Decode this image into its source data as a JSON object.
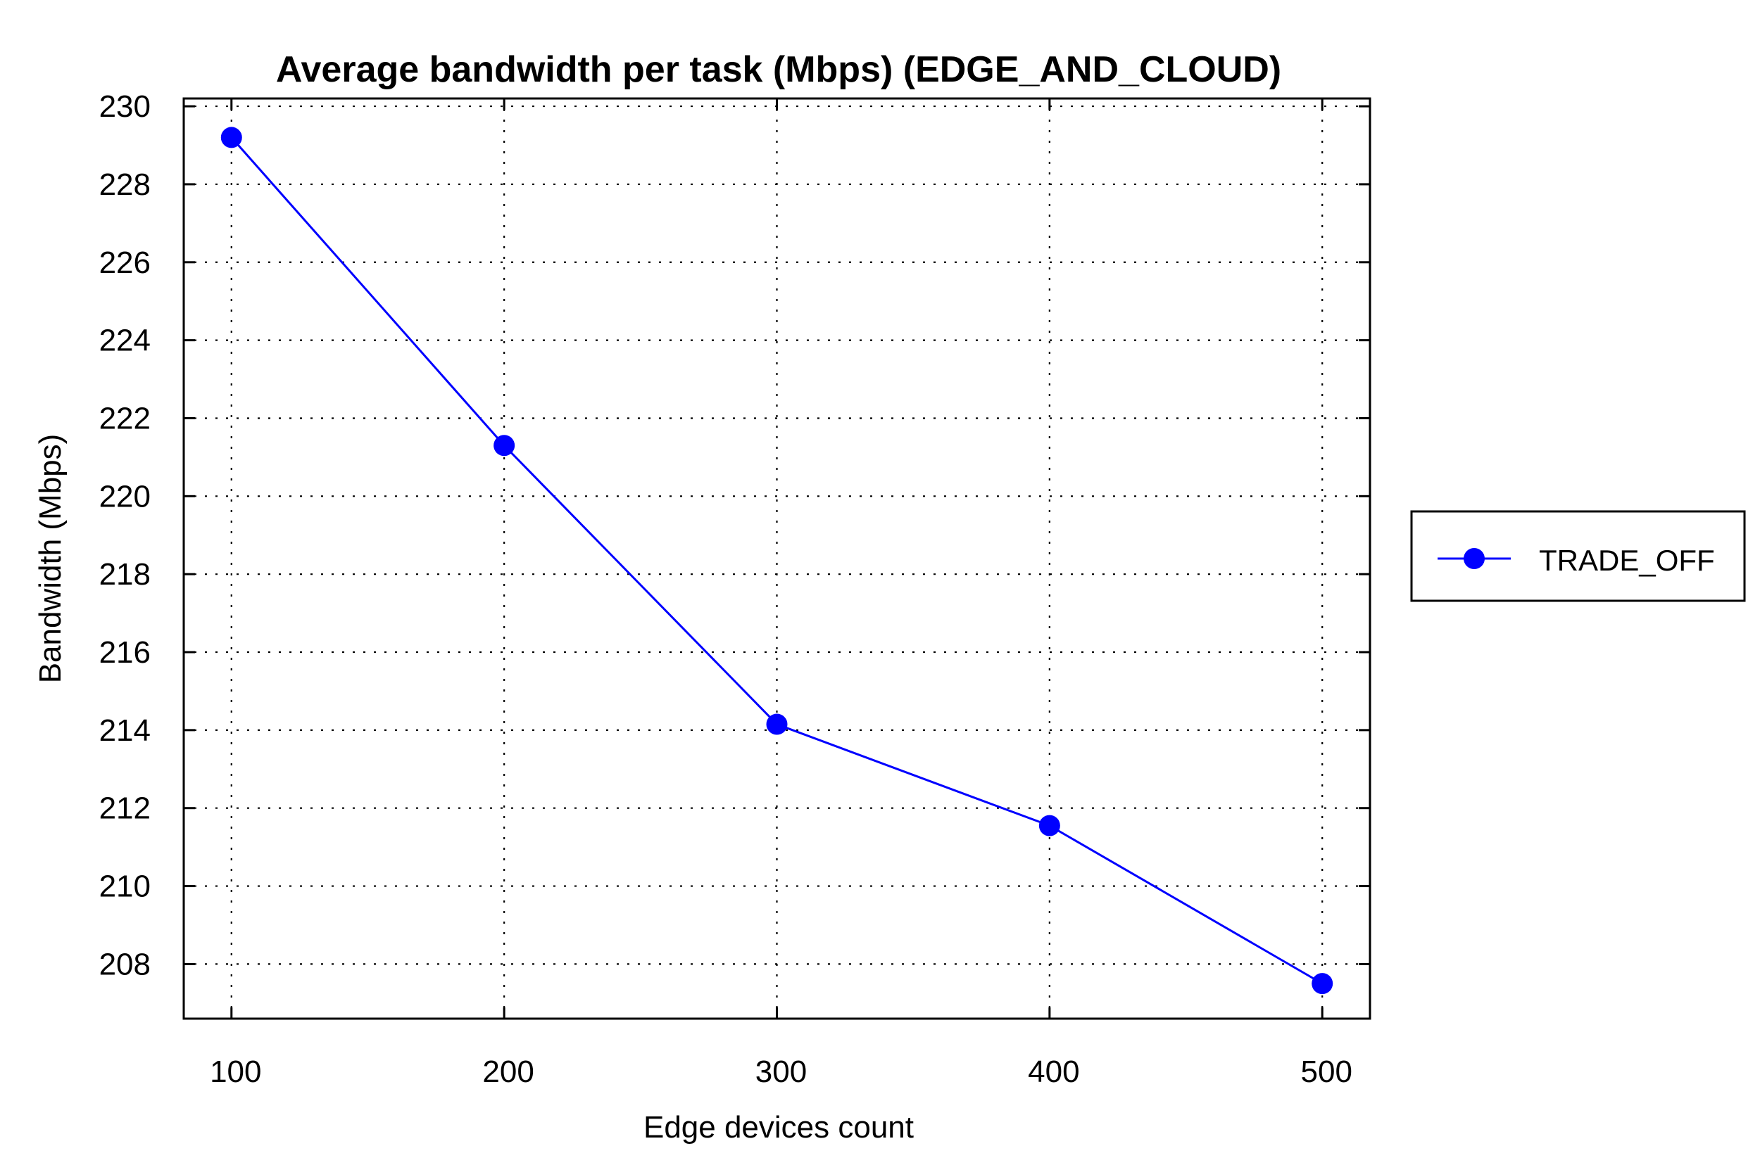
{
  "chart_data": {
    "type": "line",
    "title": "Average bandwidth per task (Mbps) (EDGE_AND_CLOUD)",
    "xlabel": "Edge devices count",
    "ylabel": "Bandwidth (Mbps)",
    "x": [
      100,
      200,
      300,
      400,
      500
    ],
    "xticks": [
      "100",
      "200",
      "300",
      "400",
      "500"
    ],
    "yticks": [
      "208",
      "210",
      "212",
      "214",
      "216",
      "218",
      "220",
      "222",
      "224",
      "226",
      "228",
      "230"
    ],
    "xlim": [
      82.5,
      517.5
    ],
    "ylim": [
      206.6,
      230.2
    ],
    "grid": true,
    "legend_position": "outside-right",
    "series": [
      {
        "name": "TRADE_OFF",
        "color": "#0000ff",
        "marker": "circle",
        "values": [
          229.2,
          221.3,
          214.15,
          211.55,
          207.5
        ]
      }
    ]
  }
}
